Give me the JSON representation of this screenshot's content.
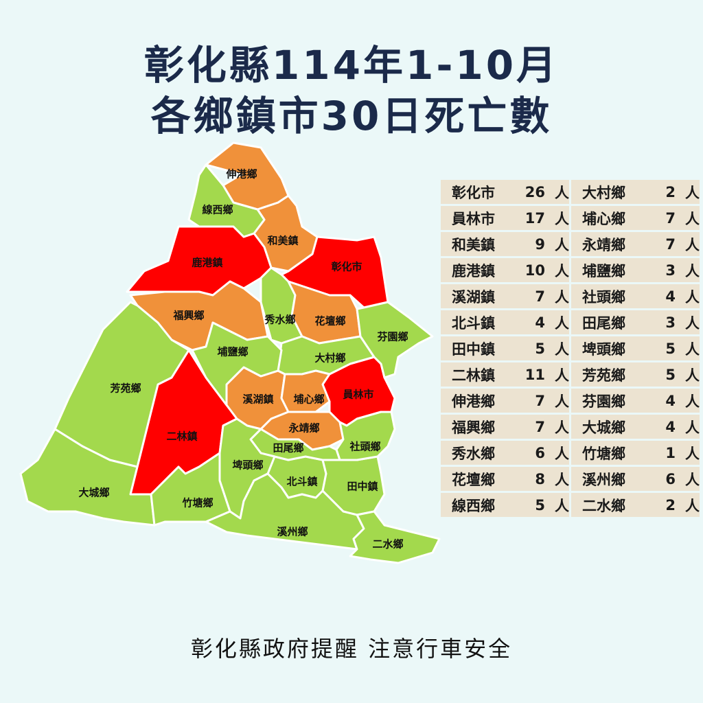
{
  "title": {
    "line1": "彰化縣114年1-10月",
    "line2": "各鄉鎮市30日死亡數"
  },
  "colors": {
    "high": "#ff0000",
    "medium": "#f0913a",
    "low": "#a3d94d",
    "title": "#1b2a4a",
    "background": "#ebf8f8",
    "table_cell": "#ece3d1"
  },
  "unit": "人",
  "regions": [
    {
      "name": "彰化市",
      "deaths": 26,
      "level": "high"
    },
    {
      "name": "員林市",
      "deaths": 17,
      "level": "high"
    },
    {
      "name": "和美鎮",
      "deaths": 9,
      "level": "medium"
    },
    {
      "name": "鹿港鎮",
      "deaths": 10,
      "level": "high"
    },
    {
      "name": "溪湖鎮",
      "deaths": 7,
      "level": "medium"
    },
    {
      "name": "北斗鎮",
      "deaths": 4,
      "level": "low"
    },
    {
      "name": "田中鎮",
      "deaths": 5,
      "level": "low"
    },
    {
      "name": "二林鎮",
      "deaths": 11,
      "level": "high"
    },
    {
      "name": "伸港鄉",
      "deaths": 7,
      "level": "medium"
    },
    {
      "name": "福興鄉",
      "deaths": 7,
      "level": "medium"
    },
    {
      "name": "秀水鄉",
      "deaths": 6,
      "level": "low"
    },
    {
      "name": "花壇鄉",
      "deaths": 8,
      "level": "medium"
    },
    {
      "name": "線西鄉",
      "deaths": 5,
      "level": "low"
    },
    {
      "name": "大村鄉",
      "deaths": 2,
      "level": "low"
    },
    {
      "name": "埔心鄉",
      "deaths": 7,
      "level": "medium"
    },
    {
      "name": "永靖鄉",
      "deaths": 7,
      "level": "medium"
    },
    {
      "name": "埔鹽鄉",
      "deaths": 3,
      "level": "low"
    },
    {
      "name": "社頭鄉",
      "deaths": 4,
      "level": "low"
    },
    {
      "name": "田尾鄉",
      "deaths": 3,
      "level": "low"
    },
    {
      "name": "埤頭鄉",
      "deaths": 5,
      "level": "low"
    },
    {
      "name": "芳苑鄉",
      "deaths": 5,
      "level": "low"
    },
    {
      "name": "芬園鄉",
      "deaths": 4,
      "level": "low"
    },
    {
      "name": "大城鄉",
      "deaths": 4,
      "level": "low"
    },
    {
      "name": "竹塘鄉",
      "deaths": 1,
      "level": "low"
    },
    {
      "name": "溪州鄉",
      "deaths": 6,
      "level": "low"
    },
    {
      "name": "二水鄉",
      "deaths": 2,
      "level": "low"
    }
  ],
  "footer": "彰化縣政府提醒 注意行車安全"
}
